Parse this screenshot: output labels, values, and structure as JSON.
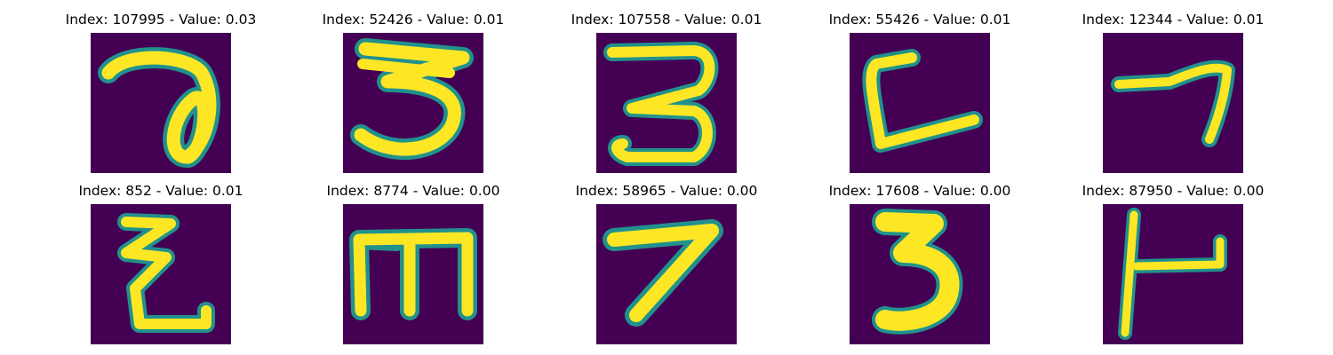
{
  "colors": {
    "background": "#440154",
    "stroke": "#fde725",
    "edge": "#21918c"
  },
  "panels": [
    {
      "title": "Index: 107995 - Value: 0.03",
      "glyph": "seven-loop-icon"
    },
    {
      "title": "Index: 52426 - Value: 0.01",
      "glyph": "three-icon"
    },
    {
      "title": "Index: 107558 - Value: 0.01",
      "glyph": "three-curl-icon"
    },
    {
      "title": "Index: 55426 - Value: 0.01",
      "glyph": "open-c-icon"
    },
    {
      "title": "Index: 12344 - Value: 0.01",
      "glyph": "seven-thin-icon"
    },
    {
      "title": "Index: 852 - Value: 0.01",
      "glyph": "zigzag-z-icon"
    },
    {
      "title": "Index: 8774 - Value: 0.00",
      "glyph": "m-shape-icon"
    },
    {
      "title": "Index: 58965 - Value: 0.00",
      "glyph": "seven-icon"
    },
    {
      "title": "Index: 17608 - Value: 0.00",
      "glyph": "bold-three-icon"
    },
    {
      "title": "Index: 87950 - Value: 0.00",
      "glyph": "flag-shape-icon"
    }
  ]
}
